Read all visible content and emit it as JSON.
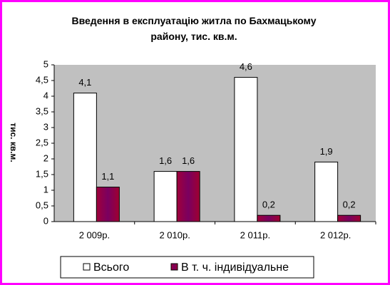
{
  "chart_data": {
    "type": "bar",
    "title": "Введення в експлуатацію житла по Бахмацькому району, тис. кв.м.",
    "y_label": "тис. кв.м.",
    "categories": [
      "2 009р.",
      "2 010р.",
      "2 011р.",
      "2 012р."
    ],
    "series": [
      {
        "name": "Всього",
        "color": "#ffffff",
        "values": [
          4.1,
          1.6,
          4.6,
          1.9
        ],
        "value_labels": [
          "4,1",
          "1,6",
          "4,6",
          "1,9"
        ]
      },
      {
        "name": "В т. ч. індивідуальне",
        "color": "#8b0a3a",
        "values": [
          1.1,
          1.6,
          0.2,
          0.2
        ],
        "value_labels": [
          "1,1",
          "1,6",
          "0,2",
          "0,2"
        ]
      }
    ],
    "ylim": [
      0,
      5
    ],
    "yticks": [
      0,
      {
        "value": 0.5,
        "label": "0,5"
      },
      1,
      {
        "value": 1.5,
        "label": "1,5"
      },
      2,
      {
        "value": 2.5,
        "label": "2,5"
      },
      3,
      {
        "value": 3.5,
        "label": "3,5"
      },
      4,
      {
        "value": 4.5,
        "label": "4,5"
      },
      5
    ],
    "plot_background": "#c0c0c0",
    "legend": "bottom"
  }
}
